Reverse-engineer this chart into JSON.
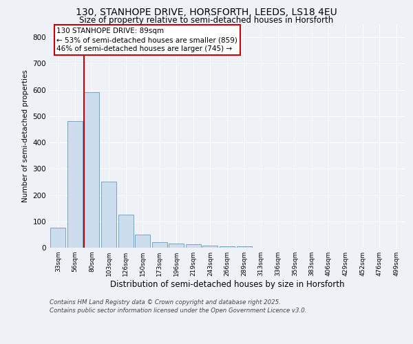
{
  "title1": "130, STANHOPE DRIVE, HORSFORTH, LEEDS, LS18 4EU",
  "title2": "Size of property relative to semi-detached houses in Horsforth",
  "xlabel": "Distribution of semi-detached houses by size in Horsforth",
  "ylabel": "Number of semi-detached properties",
  "categories": [
    "33sqm",
    "56sqm",
    "80sqm",
    "103sqm",
    "126sqm",
    "150sqm",
    "173sqm",
    "196sqm",
    "219sqm",
    "243sqm",
    "266sqm",
    "289sqm",
    "313sqm",
    "336sqm",
    "359sqm",
    "383sqm",
    "406sqm",
    "429sqm",
    "452sqm",
    "476sqm",
    "499sqm"
  ],
  "values": [
    75,
    480,
    590,
    250,
    125,
    50,
    20,
    15,
    12,
    8,
    5,
    5,
    0,
    0,
    0,
    0,
    0,
    0,
    0,
    0,
    0
  ],
  "bar_color": "#ccdded",
  "bar_edge_color": "#6699bb",
  "red_line_color": "#cc0000",
  "annotation_line1": "130 STANHOPE DRIVE: 89sqm",
  "annotation_line2": "← 53% of semi-detached houses are smaller (859)",
  "annotation_line3": "46% of semi-detached houses are larger (745) →",
  "box_edge_color": "#cc0000",
  "ylim": [
    0,
    850
  ],
  "yticks": [
    0,
    100,
    200,
    300,
    400,
    500,
    600,
    700,
    800
  ],
  "footnote1": "Contains HM Land Registry data © Crown copyright and database right 2025.",
  "footnote2": "Contains public sector information licensed under the Open Government Licence v3.0.",
  "background_color": "#eef2f7",
  "grid_color": "#ffffff"
}
